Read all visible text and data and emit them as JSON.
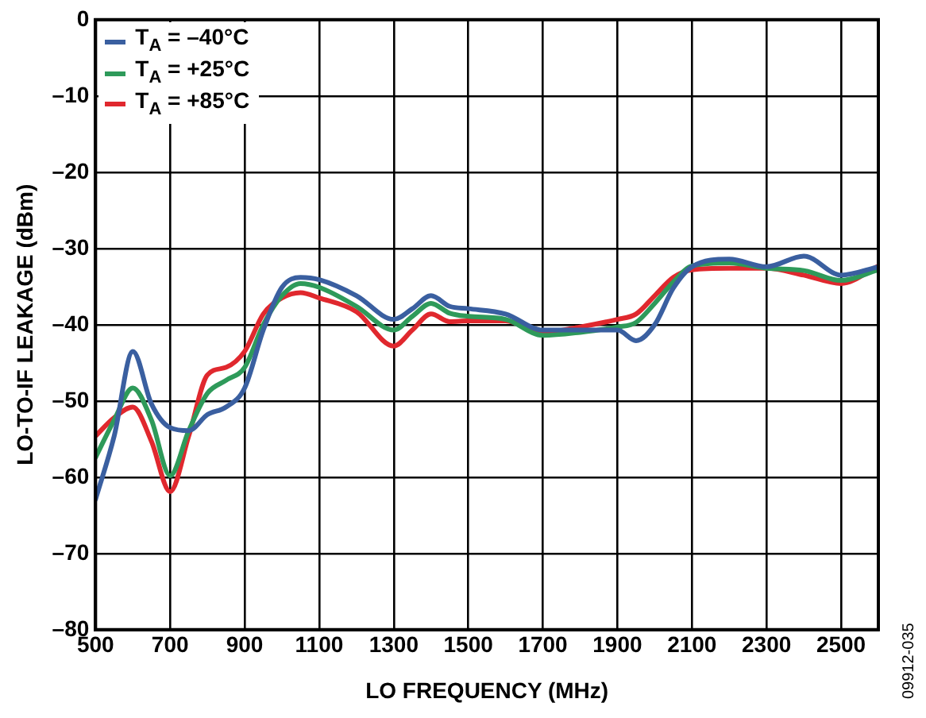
{
  "chart_data": {
    "type": "line",
    "xlabel": "LO FREQUENCY (MHz)",
    "ylabel": "LO-TO-IF LEAKAGE (dBm)",
    "xlim": [
      500,
      2600
    ],
    "xticks": [
      500,
      700,
      900,
      1100,
      1300,
      1500,
      1700,
      1900,
      2100,
      2300,
      2500
    ],
    "ylim": [
      -80,
      0
    ],
    "yticks": [
      {
        "value": -80,
        "label": "–80"
      },
      {
        "value": -70,
        "label": "–70"
      },
      {
        "value": -60,
        "label": "–60"
      },
      {
        "value": -50,
        "label": "–50"
      },
      {
        "value": -40,
        "label": "–40"
      },
      {
        "value": -30,
        "label": "–30"
      },
      {
        "value": -20,
        "label": "–20"
      },
      {
        "value": -10,
        "label": "–10"
      },
      0
    ],
    "grid": true,
    "legend": "top left",
    "marker": "none",
    "line_style": "solid",
    "annotations": [
      "09912-035"
    ],
    "x": [
      500,
      550,
      600,
      650,
      700,
      750,
      800,
      850,
      900,
      950,
      1000,
      1050,
      1100,
      1200,
      1300,
      1350,
      1400,
      1450,
      1500,
      1600,
      1700,
      1800,
      1900,
      1950,
      2000,
      2050,
      2100,
      2200,
      2300,
      2400,
      2500,
      2600
    ],
    "series": [
      {
        "name": "T$_{A}$ = –40°C",
        "color": "#3a5fa0",
        "values": [
          -62.9,
          -54.6,
          -43.5,
          -50.4,
          -53.5,
          -53.9,
          -51.8,
          -50.8,
          -48.3,
          -40.7,
          -35.1,
          -33.8,
          -34.1,
          -36.2,
          -39.3,
          -37.9,
          -36.2,
          -37.6,
          -37.9,
          -38.6,
          -40.7,
          -40.7,
          -40.7,
          -42.1,
          -40.0,
          -35.2,
          -32.4,
          -31.4,
          -32.4,
          -31.0,
          -33.5,
          -32.4
        ]
      },
      {
        "name": "T$_{A}$ = +25°C",
        "color": "#2e9a5a",
        "values": [
          -57.4,
          -52.5,
          -48.3,
          -52.5,
          -59.8,
          -53.9,
          -49.0,
          -47.3,
          -45.6,
          -40.0,
          -36.2,
          -34.6,
          -35.1,
          -37.6,
          -40.7,
          -38.9,
          -37.2,
          -38.5,
          -38.9,
          -39.3,
          -41.4,
          -41.0,
          -40.3,
          -39.7,
          -37.2,
          -34.4,
          -32.3,
          -31.9,
          -32.6,
          -32.9,
          -34.2,
          -32.8
        ]
      },
      {
        "name": "T$_{A}$ = +85°C",
        "color": "#e0282e",
        "values": [
          -54.6,
          -52.2,
          -50.8,
          -55.3,
          -61.9,
          -54.6,
          -46.6,
          -45.6,
          -43.5,
          -38.6,
          -36.5,
          -35.8,
          -36.5,
          -38.3,
          -42.8,
          -40.7,
          -38.6,
          -39.6,
          -39.5,
          -39.5,
          -41.0,
          -40.3,
          -39.3,
          -38.6,
          -36.2,
          -33.8,
          -32.8,
          -32.6,
          -32.6,
          -33.5,
          -34.6,
          -32.3
        ]
      }
    ]
  }
}
